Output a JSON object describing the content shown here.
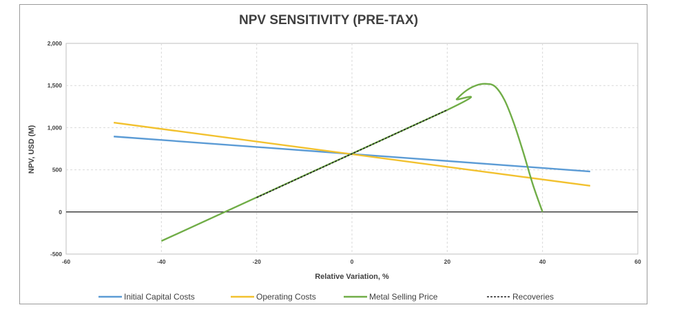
{
  "chart_data": {
    "type": "line",
    "title": "NPV SENSITIVITY (PRE-TAX)",
    "xlabel": "Relative Variation, %",
    "ylabel": "NPV, USD (M)",
    "xlim": [
      -60,
      60
    ],
    "ylim": [
      -500,
      2000
    ],
    "xticks": [
      -60,
      -40,
      -20,
      0,
      20,
      40,
      60
    ],
    "yticks": [
      -500,
      0,
      500,
      1000,
      1500,
      2000
    ],
    "xtick_labels": [
      "-60",
      "-40",
      "-20",
      "0",
      "20",
      "40",
      "60"
    ],
    "ytick_labels": [
      "-500",
      "0",
      "500",
      "1,000",
      "1,500",
      "2,000"
    ],
    "grid": true,
    "legend_position": "bottom",
    "series": [
      {
        "name": "Initial Capital Costs",
        "color": "#5b9bd5",
        "style": "solid",
        "x": [
          -50,
          50
        ],
        "y": [
          895,
          480
        ]
      },
      {
        "name": "Operating Costs",
        "color": "#f2c12e",
        "style": "solid",
        "x": [
          -50,
          50
        ],
        "y": [
          1060,
          310
        ]
      },
      {
        "name": "Metal Selling Price",
        "color": "#70ad47",
        "style": "solid",
        "x": [
          -40,
          20,
          22,
          24,
          26,
          28,
          30,
          32,
          34,
          36,
          38,
          40
        ],
        "y": [
          -345,
          1210,
          1340,
          1440,
          1500,
          1520,
          1490,
          1330,
          1050,
          700,
          320,
          0
        ]
      },
      {
        "name": "Recoveries",
        "color": "#222222",
        "style": "dashed",
        "x": [
          -20,
          20
        ],
        "y": [
          170,
          1210
        ]
      }
    ]
  }
}
